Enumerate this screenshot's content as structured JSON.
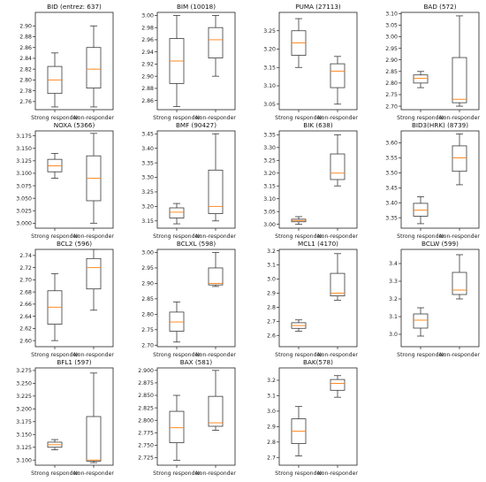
{
  "figure": {
    "categories": [
      "Strong responder",
      "Non-responder"
    ]
  },
  "chart_data": [
    {
      "type": "box",
      "title": "BID (entrez: 637)",
      "ylim": [
        2.745,
        2.925
      ],
      "yticks": [
        "2.76",
        "2.78",
        "2.80",
        "2.82",
        "2.84",
        "2.86",
        "2.88",
        "2.90"
      ],
      "ytick_values": [
        2.76,
        2.78,
        2.8,
        2.82,
        2.84,
        2.86,
        2.88,
        2.9
      ],
      "boxes": [
        {
          "category": "Strong responder",
          "whislo": 2.75,
          "q1": 2.775,
          "med": 2.8,
          "q3": 2.825,
          "whishi": 2.85
        },
        {
          "category": "Non-responder",
          "whislo": 2.75,
          "q1": 2.785,
          "med": 2.82,
          "q3": 2.86,
          "whishi": 2.9
        }
      ]
    },
    {
      "type": "box",
      "title": "BIM (10018)",
      "ylim": [
        2.845,
        3.005
      ],
      "yticks": [
        "2.86",
        "2.88",
        "2.90",
        "2.92",
        "2.94",
        "2.96",
        "2.98",
        "3.00"
      ],
      "ytick_values": [
        2.86,
        2.88,
        2.9,
        2.92,
        2.94,
        2.96,
        2.98,
        3.0
      ],
      "boxes": [
        {
          "category": "Strong responder",
          "whislo": 2.85,
          "q1": 2.888,
          "med": 2.925,
          "q3": 2.962,
          "whishi": 3.0
        },
        {
          "category": "Non-responder",
          "whislo": 2.9,
          "q1": 2.93,
          "med": 2.96,
          "q3": 2.98,
          "whishi": 3.0
        }
      ]
    },
    {
      "type": "box",
      "title": "PUMA (27113)",
      "ylim": [
        3.035,
        3.3
      ],
      "yticks": [
        "3.05",
        "3.10",
        "3.15",
        "3.20",
        "3.25"
      ],
      "ytick_values": [
        3.05,
        3.1,
        3.15,
        3.2,
        3.25
      ],
      "boxes": [
        {
          "category": "Strong responder",
          "whislo": 3.15,
          "q1": 3.183,
          "med": 3.217,
          "q3": 3.25,
          "whishi": 3.283
        },
        {
          "category": "Non-responder",
          "whislo": 3.05,
          "q1": 3.095,
          "med": 3.14,
          "q3": 3.16,
          "whishi": 3.18
        }
      ]
    },
    {
      "type": "box",
      "title": "BAD (572)",
      "ylim": [
        2.685,
        3.105
      ],
      "yticks": [
        "2.70",
        "2.75",
        "2.80",
        "2.85",
        "2.90",
        "2.95",
        "3.00",
        "3.05",
        "3.10"
      ],
      "ytick_values": [
        2.7,
        2.75,
        2.8,
        2.85,
        2.9,
        2.95,
        3.0,
        3.05,
        3.1
      ],
      "boxes": [
        {
          "category": "Strong responder",
          "whislo": 2.78,
          "q1": 2.8,
          "med": 2.82,
          "q3": 2.835,
          "whishi": 2.85
        },
        {
          "category": "Non-responder",
          "whislo": 2.7,
          "q1": 2.715,
          "med": 2.73,
          "q3": 2.91,
          "whishi": 3.09
        }
      ]
    },
    {
      "type": "box",
      "title": "NOXA (5366)",
      "ylim": [
        2.99,
        3.185
      ],
      "yticks": [
        "3.000",
        "3.025",
        "3.050",
        "3.075",
        "3.100",
        "3.125",
        "3.150",
        "3.175"
      ],
      "ytick_values": [
        3.0,
        3.025,
        3.05,
        3.075,
        3.1,
        3.125,
        3.15,
        3.175
      ],
      "boxes": [
        {
          "category": "Strong responder",
          "whislo": 3.09,
          "q1": 3.103,
          "med": 3.115,
          "q3": 3.128,
          "whishi": 3.14
        },
        {
          "category": "Non-responder",
          "whislo": 3.0,
          "q1": 3.045,
          "med": 3.09,
          "q3": 3.135,
          "whishi": 3.18
        }
      ]
    },
    {
      "type": "box",
      "title": "BMF (90427)",
      "ylim": [
        3.125,
        3.46
      ],
      "yticks": [
        "3.15",
        "3.20",
        "3.25",
        "3.30",
        "3.35",
        "3.40",
        "3.45"
      ],
      "ytick_values": [
        3.15,
        3.2,
        3.25,
        3.3,
        3.35,
        3.4,
        3.45
      ],
      "boxes": [
        {
          "category": "Strong responder",
          "whislo": 3.14,
          "q1": 3.16,
          "med": 3.18,
          "q3": 3.195,
          "whishi": 3.21
        },
        {
          "category": "Non-responder",
          "whislo": 3.15,
          "q1": 3.175,
          "med": 3.2,
          "q3": 3.325,
          "whishi": 3.45
        }
      ]
    },
    {
      "type": "box",
      "title": "BIK (638)",
      "ylim": [
        2.985,
        3.365
      ],
      "yticks": [
        "3.00",
        "3.05",
        "3.10",
        "3.15",
        "3.20",
        "3.25",
        "3.30",
        "3.35"
      ],
      "ytick_values": [
        3.0,
        3.05,
        3.1,
        3.15,
        3.2,
        3.25,
        3.3,
        3.35
      ],
      "boxes": [
        {
          "category": "Strong responder",
          "whislo": 3.0,
          "q1": 3.01,
          "med": 3.015,
          "q3": 3.02,
          "whishi": 3.03
        },
        {
          "category": "Non-responder",
          "whislo": 3.15,
          "q1": 3.175,
          "med": 3.2,
          "q3": 3.275,
          "whishi": 3.35
        }
      ]
    },
    {
      "type": "box",
      "title": "BID3(HRK) (8739)",
      "ylim": [
        3.315,
        3.64
      ],
      "yticks": [
        "3.35",
        "3.40",
        "3.45",
        "3.50",
        "3.55",
        "3.60"
      ],
      "ytick_values": [
        3.35,
        3.4,
        3.45,
        3.5,
        3.55,
        3.6
      ],
      "boxes": [
        {
          "category": "Strong responder",
          "whislo": 3.33,
          "q1": 3.355,
          "med": 3.375,
          "q3": 3.398,
          "whishi": 3.42
        },
        {
          "category": "Non-responder",
          "whislo": 3.46,
          "q1": 3.505,
          "med": 3.55,
          "q3": 3.59,
          "whishi": 3.63
        }
      ]
    },
    {
      "type": "box",
      "title": "BCL2 (596)",
      "ylim": [
        2.59,
        2.75
      ],
      "yticks": [
        "2.60",
        "2.62",
        "2.64",
        "2.66",
        "2.68",
        "2.70",
        "2.72",
        "2.74"
      ],
      "ytick_values": [
        2.6,
        2.62,
        2.64,
        2.66,
        2.68,
        2.7,
        2.72,
        2.74
      ],
      "boxes": [
        {
          "category": "Strong responder",
          "whislo": 2.6,
          "q1": 2.627,
          "med": 2.655,
          "q3": 2.682,
          "whishi": 2.71
        },
        {
          "category": "Non-responder",
          "whislo": 2.65,
          "q1": 2.685,
          "med": 2.72,
          "q3": 2.735,
          "whishi": 2.75
        }
      ]
    },
    {
      "type": "box",
      "title": "BCLXL (598)",
      "ylim": [
        2.695,
        3.01
      ],
      "yticks": [
        "2.70",
        "2.75",
        "2.80",
        "2.85",
        "2.90",
        "2.95",
        "3.00"
      ],
      "ytick_values": [
        2.7,
        2.75,
        2.8,
        2.85,
        2.9,
        2.95,
        3.0
      ],
      "boxes": [
        {
          "category": "Strong responder",
          "whislo": 2.71,
          "q1": 2.745,
          "med": 2.775,
          "q3": 2.807,
          "whishi": 2.84
        },
        {
          "category": "Non-responder",
          "whislo": 2.89,
          "q1": 2.895,
          "med": 2.9,
          "q3": 2.95,
          "whishi": 3.0
        }
      ]
    },
    {
      "type": "box",
      "title": "MCL1 (4170)",
      "ylim": [
        2.52,
        3.21
      ],
      "yticks": [
        "2.6",
        "2.7",
        "2.8",
        "2.9",
        "3.0",
        "3.1",
        "3.2"
      ],
      "ytick_values": [
        2.6,
        2.7,
        2.8,
        2.9,
        3.0,
        3.1,
        3.2
      ],
      "boxes": [
        {
          "category": "Strong responder",
          "whislo": 2.63,
          "q1": 2.65,
          "med": 2.67,
          "q3": 2.69,
          "whishi": 2.71
        },
        {
          "category": "Non-responder",
          "whislo": 2.85,
          "q1": 2.88,
          "med": 2.9,
          "q3": 3.04,
          "whishi": 3.18
        }
      ]
    },
    {
      "type": "box",
      "title": "BCLW (599)",
      "ylim": [
        2.93,
        3.48
      ],
      "yticks": [
        "3.0",
        "3.1",
        "3.2",
        "3.3",
        "3.4"
      ],
      "ytick_values": [
        3.0,
        3.1,
        3.2,
        3.3,
        3.4
      ],
      "boxes": [
        {
          "category": "Strong responder",
          "whislo": 2.99,
          "q1": 3.035,
          "med": 3.08,
          "q3": 3.115,
          "whishi": 3.15
        },
        {
          "category": "Non-responder",
          "whislo": 3.2,
          "q1": 3.225,
          "med": 3.25,
          "q3": 3.35,
          "whishi": 3.45
        }
      ]
    },
    {
      "type": "box",
      "title": "BFL1 (597)",
      "ylim": [
        3.09,
        3.28
      ],
      "yticks": [
        "3.100",
        "3.125",
        "3.150",
        "3.175",
        "3.200",
        "3.225",
        "3.250",
        "3.275"
      ],
      "ytick_values": [
        3.1,
        3.125,
        3.15,
        3.175,
        3.2,
        3.225,
        3.25,
        3.275
      ],
      "boxes": [
        {
          "category": "Strong responder",
          "whislo": 3.12,
          "q1": 3.125,
          "med": 3.13,
          "q3": 3.135,
          "whishi": 3.14
        },
        {
          "category": "Non-responder",
          "whislo": 3.095,
          "q1": 3.098,
          "med": 3.1,
          "q3": 3.185,
          "whishi": 3.27
        }
      ]
    },
    {
      "type": "box",
      "title": "BAX (581)",
      "ylim": [
        2.71,
        2.905
      ],
      "yticks": [
        "2.725",
        "2.750",
        "2.775",
        "2.800",
        "2.825",
        "2.850",
        "2.875",
        "2.900"
      ],
      "ytick_values": [
        2.725,
        2.75,
        2.775,
        2.8,
        2.825,
        2.85,
        2.875,
        2.9
      ],
      "boxes": [
        {
          "category": "Strong responder",
          "whislo": 2.72,
          "q1": 2.755,
          "med": 2.785,
          "q3": 2.818,
          "whishi": 2.85
        },
        {
          "category": "Non-responder",
          "whislo": 2.78,
          "q1": 2.788,
          "med": 2.795,
          "q3": 2.848,
          "whishi": 2.9
        }
      ]
    },
    {
      "type": "box",
      "title": "BAK(578)",
      "ylim": [
        2.65,
        3.28
      ],
      "yticks": [
        "2.7",
        "2.8",
        "2.9",
        "3.0",
        "3.1",
        "3.2"
      ],
      "ytick_values": [
        2.7,
        2.8,
        2.9,
        3.0,
        3.1,
        3.2
      ],
      "boxes": [
        {
          "category": "Strong responder",
          "whislo": 2.71,
          "q1": 2.79,
          "med": 2.87,
          "q3": 2.95,
          "whishi": 3.03
        },
        {
          "category": "Non-responder",
          "whislo": 3.09,
          "q1": 3.135,
          "med": 3.18,
          "q3": 3.205,
          "whishi": 3.23
        }
      ]
    }
  ]
}
